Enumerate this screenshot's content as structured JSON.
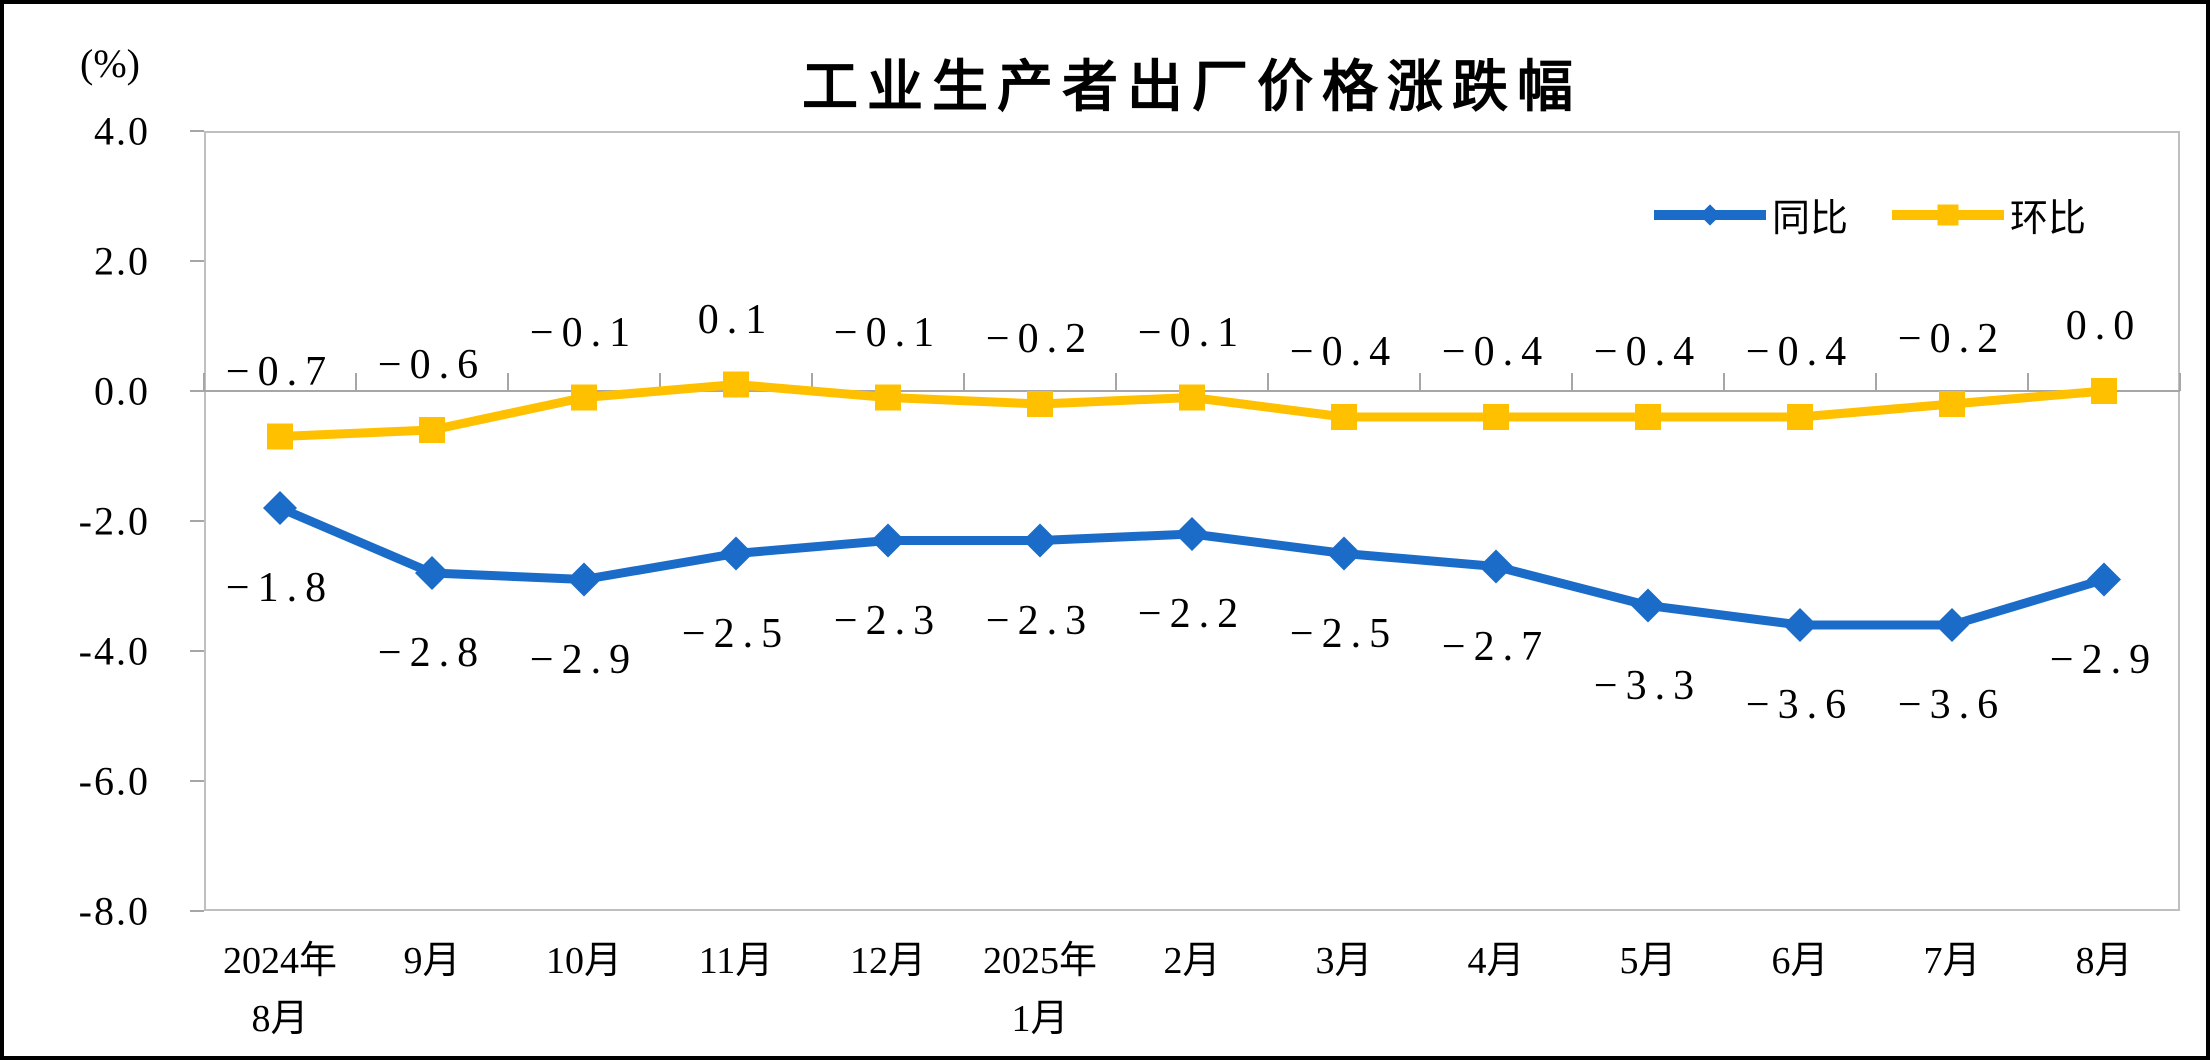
{
  "title": "工业生产者出厂价格涨跌幅",
  "unit_label": "(%)",
  "colors": {
    "tongbi_blue": "#1b6cc8",
    "huanbi_yellow": "#ffc000",
    "plot_border_gray": "#bfbfbf",
    "axis_gray": "#a6a6a6",
    "text_black": "#000000"
  },
  "legend": {
    "position": "top-right",
    "items": [
      {
        "label": "同比",
        "color": "#1b6cc8",
        "marker": "diamond"
      },
      {
        "label": "环比",
        "color": "#ffc000",
        "marker": "square"
      }
    ]
  },
  "chart_data": {
    "type": "line",
    "title": "工业生产者出厂价格涨跌幅",
    "ylabel": "(%)",
    "xlabel": "",
    "grid": false,
    "ylim": [
      -8.0,
      4.0
    ],
    "y_tick_step": 2.0,
    "y_tick_labels": [
      "4.0",
      "2.0",
      "0.0",
      "-2.0",
      "-4.0",
      "-6.0",
      "-8.0"
    ],
    "categories": [
      "2024年\n8月",
      "9月",
      "10月",
      "11月",
      "12月",
      "2025年\n1月",
      "2月",
      "3月",
      "4月",
      "5月",
      "6月",
      "7月",
      "8月"
    ],
    "series": [
      {
        "name": "同比",
        "color": "#1b6cc8",
        "marker": "diamond",
        "values": [
          -1.8,
          -2.8,
          -2.9,
          -2.5,
          -2.3,
          -2.3,
          -2.2,
          -2.5,
          -2.7,
          -3.3,
          -3.6,
          -3.6,
          -2.9
        ],
        "data_labels": [
          "−1.8",
          "−2.8",
          "−2.9",
          "−2.5",
          "−2.3",
          "−2.3",
          "−2.2",
          "−2.5",
          "−2.7",
          "−3.3",
          "−3.6",
          "−3.6",
          "−2.9"
        ],
        "label_side": "below"
      },
      {
        "name": "环比",
        "color": "#ffc000",
        "marker": "square",
        "values": [
          -0.7,
          -0.6,
          -0.1,
          0.1,
          -0.1,
          -0.2,
          -0.1,
          -0.4,
          -0.4,
          -0.4,
          -0.4,
          -0.2,
          0.0
        ],
        "data_labels": [
          "−0.7",
          "−0.6",
          "−0.1",
          "0.1",
          "−0.1",
          "−0.2",
          "−0.1",
          "−0.4",
          "−0.4",
          "−0.4",
          "−0.4",
          "−0.2",
          "0.0"
        ],
        "label_side": "above"
      }
    ]
  }
}
